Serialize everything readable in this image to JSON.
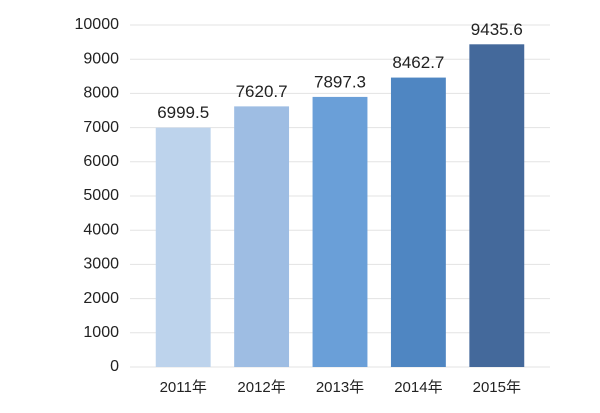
{
  "chart_data": {
    "type": "bar",
    "categories": [
      "2011年",
      "2012年",
      "2013年",
      "2014年",
      "2015年"
    ],
    "values": [
      6999.5,
      7620.7,
      7897.3,
      8462.7,
      9435.6
    ],
    "colors": [
      "#bdd3ec",
      "#9ebde3",
      "#6a9fd8",
      "#4f86c2",
      "#44699b"
    ],
    "ylim": [
      0,
      10000
    ],
    "yticks": [
      0,
      1000,
      2000,
      3000,
      4000,
      5000,
      6000,
      7000,
      8000,
      9000,
      10000
    ],
    "grid": true
  }
}
